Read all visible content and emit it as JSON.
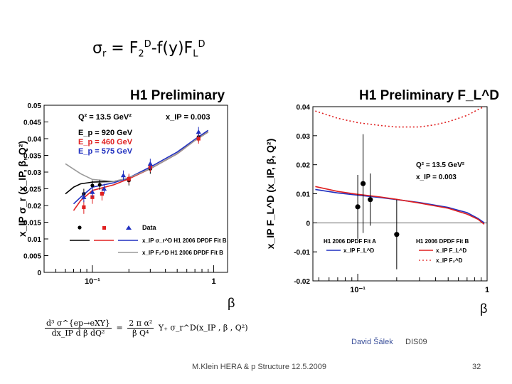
{
  "slide": {
    "headline": {
      "sigma": "σ",
      "r": "r",
      "mid": " = F",
      "sub2": "2",
      "supD": "D",
      "rest": "-f(y)F",
      "subL": "L",
      "supD2": "D"
    },
    "formula": {
      "lhs_num": "d³ σ^{ep→eXY}",
      "lhs_den": "dx_IP d β dQ²",
      "eq": "=",
      "rhs_num": "2 π α²",
      "rhs_den": "β Q⁴",
      "rhs_tail": "Y₊ σ_r^D(x_IP , β , Q²)"
    },
    "author": "David Šálek",
    "conference": "DIS09",
    "footer": "M.Klein HERA & p Structure 12.5.2009",
    "page_number": "32"
  },
  "chart_data": [
    {
      "type": "scatter",
      "title": "H1 Preliminary",
      "xlabel": "β",
      "ylabel": "x_IP σ_r (x_IP, β, Q²)",
      "xscale": "log",
      "xlim": [
        0.04,
        1.3
      ],
      "ylim": [
        0,
        0.05
      ],
      "yticks": [
        "0",
        "0.005",
        "0.01",
        "0.015",
        "0.02",
        "0.025",
        "0.03",
        "0.035",
        "0.04",
        "0.045",
        "0.05"
      ],
      "xticks": [
        {
          "v": 0.1,
          "label": "10⁻¹"
        },
        {
          "v": 1,
          "label": "1"
        }
      ],
      "annotations": {
        "q2": "Q² = 13.5 GeV²",
        "xip": "x_IP = 0.003",
        "ep1": "E_p = 920 GeV",
        "ep2": "E_p = 460 GeV",
        "ep3": "E_p = 575 GeV"
      },
      "legend": {
        "data_label": "Data",
        "line1": "x_IP σ_r^D H1 2006 DPDF Fit B",
        "line2": "x_IP F₂^D H1 2006 DPDF Fit B"
      },
      "series": [
        {
          "name": "E_p = 920 GeV",
          "color": "#000000",
          "marker": "circle",
          "points": [
            {
              "x": 0.085,
              "y": 0.0235,
              "e": 0.0015
            },
            {
              "x": 0.1,
              "y": 0.026,
              "e": 0.0015
            },
            {
              "x": 0.115,
              "y": 0.0262,
              "e": 0.0015
            },
            {
              "x": 0.2,
              "y": 0.0275,
              "e": 0.0015
            },
            {
              "x": 0.3,
              "y": 0.031,
              "e": 0.0015
            },
            {
              "x": 0.75,
              "y": 0.0405,
              "e": 0.0015
            }
          ]
        },
        {
          "name": "E_p = 460 GeV",
          "color": "#e02020",
          "marker": "square",
          "points": [
            {
              "x": 0.085,
              "y": 0.0195,
              "e": 0.002
            },
            {
              "x": 0.1,
              "y": 0.0225,
              "e": 0.002
            },
            {
              "x": 0.12,
              "y": 0.0235,
              "e": 0.002
            },
            {
              "x": 0.2,
              "y": 0.028,
              "e": 0.0015
            },
            {
              "x": 0.3,
              "y": 0.0315,
              "e": 0.0015
            },
            {
              "x": 0.75,
              "y": 0.04,
              "e": 0.0015
            }
          ]
        },
        {
          "name": "E_p = 575 GeV",
          "color": "#2030c0",
          "marker": "triangle",
          "points": [
            {
              "x": 0.085,
              "y": 0.0225,
              "e": 0.0015
            },
            {
              "x": 0.1,
              "y": 0.024,
              "e": 0.0015
            },
            {
              "x": 0.125,
              "y": 0.025,
              "e": 0.0015
            },
            {
              "x": 0.18,
              "y": 0.029,
              "e": 0.0015
            },
            {
              "x": 0.3,
              "y": 0.0325,
              "e": 0.0015
            },
            {
              "x": 0.75,
              "y": 0.042,
              "e": 0.0015
            }
          ]
        }
      ],
      "curves": [
        {
          "name": "σ_r fit, 920 GeV",
          "color": "#000000",
          "dash": "",
          "points": [
            [
              0.06,
              0.0235
            ],
            [
              0.07,
              0.0255
            ],
            [
              0.08,
              0.0265
            ],
            [
              0.1,
              0.027
            ],
            [
              0.15,
              0.0272
            ],
            [
              0.2,
              0.0282
            ],
            [
              0.3,
              0.031
            ],
            [
              0.5,
              0.0355
            ],
            [
              0.7,
              0.0395
            ],
            [
              0.9,
              0.042
            ]
          ]
        },
        {
          "name": "σ_r fit, 460 GeV",
          "color": "#e02020",
          "dash": "",
          "points": [
            [
              0.07,
              0.0185
            ],
            [
              0.08,
              0.0215
            ],
            [
              0.1,
              0.0245
            ],
            [
              0.15,
              0.0262
            ],
            [
              0.2,
              0.028
            ],
            [
              0.3,
              0.031
            ],
            [
              0.5,
              0.0355
            ],
            [
              0.7,
              0.0395
            ],
            [
              0.9,
              0.042
            ]
          ]
        },
        {
          "name": "σ_r fit, 575 GeV",
          "color": "#2030c0",
          "dash": "",
          "points": [
            [
              0.07,
              0.0205
            ],
            [
              0.08,
              0.0225
            ],
            [
              0.1,
              0.0255
            ],
            [
              0.15,
              0.0268
            ],
            [
              0.2,
              0.0283
            ],
            [
              0.3,
              0.0315
            ],
            [
              0.5,
              0.036
            ],
            [
              0.7,
              0.0398
            ],
            [
              0.9,
              0.0425
            ]
          ]
        },
        {
          "name": "F₂ fit",
          "color": "#9a9a9a",
          "dash": "",
          "points": [
            [
              0.06,
              0.0325
            ],
            [
              0.08,
              0.0295
            ],
            [
              0.1,
              0.0278
            ],
            [
              0.15,
              0.0272
            ],
            [
              0.2,
              0.0283
            ],
            [
              0.3,
              0.031
            ],
            [
              0.5,
              0.0355
            ],
            [
              0.7,
              0.0395
            ],
            [
              0.9,
              0.042
            ]
          ]
        }
      ]
    },
    {
      "type": "scatter",
      "title": "H1 Preliminary F_L^D",
      "xlabel": "β",
      "ylabel": "x_IP F_L^D (x_IP, β, Q²)",
      "xscale": "log",
      "xlim": [
        0.045,
        1.0
      ],
      "ylim": [
        -0.02,
        0.04
      ],
      "yticks": [
        "-0.02",
        "-0.01",
        "0",
        "0.01",
        "0.02",
        "0.03",
        "0.04"
      ],
      "xticks": [
        {
          "v": 0.1,
          "label": "10⁻¹"
        },
        {
          "v": 1,
          "label": "1"
        }
      ],
      "annotations": {
        "q2": "Q² = 13.5 GeV²",
        "xip": "x_IP = 0.003"
      },
      "legend": {
        "fitA": "H1 2006 DPDF Fit A",
        "fitB": "H1 2006 DPDF Fit B",
        "fitA_fl": "x_IP F_L^D",
        "fitB_fl": "x_IP F_L^D",
        "fitB_f2": "x_IP F₂^D"
      },
      "series": [
        {
          "name": "Data",
          "color": "#000000",
          "marker": "circle",
          "points": [
            {
              "x": 0.1,
              "y": 0.0055,
              "e": 0.011
            },
            {
              "x": 0.11,
              "y": 0.0135,
              "e": 0.017
            },
            {
              "x": 0.125,
              "y": 0.008,
              "e": 0.009
            },
            {
              "x": 0.2,
              "y": -0.004,
              "e": 0.012
            }
          ]
        }
      ],
      "curves": [
        {
          "name": "Fit A F_L",
          "color": "#2030c0",
          "dash": "",
          "points": [
            [
              0.047,
              0.0115
            ],
            [
              0.07,
              0.0103
            ],
            [
              0.1,
              0.0095
            ],
            [
              0.15,
              0.0087
            ],
            [
              0.2,
              0.008
            ],
            [
              0.3,
              0.007
            ],
            [
              0.5,
              0.0053
            ],
            [
              0.7,
              0.0035
            ],
            [
              0.85,
              0.0015
            ],
            [
              0.95,
              0
            ]
          ]
        },
        {
          "name": "Fit B F_L",
          "color": "#e02020",
          "dash": "",
          "points": [
            [
              0.047,
              0.0125
            ],
            [
              0.07,
              0.0108
            ],
            [
              0.1,
              0.0098
            ],
            [
              0.15,
              0.0089
            ],
            [
              0.2,
              0.0081
            ],
            [
              0.3,
              0.0068
            ],
            [
              0.5,
              0.005
            ],
            [
              0.7,
              0.003
            ],
            [
              0.85,
              0.0012
            ],
            [
              0.95,
              -0.0005
            ]
          ]
        },
        {
          "name": "Fit B F₂",
          "color": "#e02020",
          "dash": "2,3",
          "points": [
            [
              0.047,
              0.0385
            ],
            [
              0.07,
              0.036
            ],
            [
              0.1,
              0.0345
            ],
            [
              0.15,
              0.0335
            ],
            [
              0.2,
              0.033
            ],
            [
              0.3,
              0.033
            ],
            [
              0.4,
              0.0338
            ],
            [
              0.5,
              0.0348
            ],
            [
              0.7,
              0.037
            ],
            [
              0.85,
              0.039
            ],
            [
              0.95,
              0.04
            ]
          ]
        }
      ]
    }
  ]
}
